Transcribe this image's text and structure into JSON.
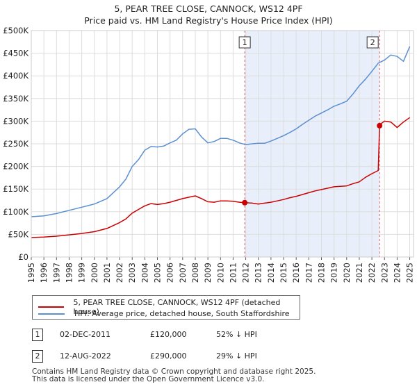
{
  "title": "5, PEAR TREE CLOSE, CANNOCK, WS12 4PF",
  "subtitle": "Price paid vs. HM Land Registry's House Price Index (HPI)",
  "chart_data": {
    "type": "line",
    "xlim": [
      1995,
      2025.3
    ],
    "ylim": [
      0,
      500000
    ],
    "y_ticks": [
      {
        "value": 0,
        "label": "£0"
      },
      {
        "value": 50000,
        "label": "£50K"
      },
      {
        "value": 100000,
        "label": "£100K"
      },
      {
        "value": 150000,
        "label": "£150K"
      },
      {
        "value": 200000,
        "label": "£200K"
      },
      {
        "value": 250000,
        "label": "£250K"
      },
      {
        "value": 300000,
        "label": "£300K"
      },
      {
        "value": 350000,
        "label": "£350K"
      },
      {
        "value": 400000,
        "label": "£400K"
      },
      {
        "value": 450000,
        "label": "£450K"
      },
      {
        "value": 500000,
        "label": "£500K"
      }
    ],
    "x_ticks": [
      "1995",
      "1996",
      "1997",
      "1998",
      "1999",
      "2000",
      "2001",
      "2002",
      "2003",
      "2004",
      "2005",
      "2006",
      "2007",
      "2008",
      "2009",
      "2010",
      "2011",
      "2012",
      "2013",
      "2014",
      "2015",
      "2016",
      "2017",
      "2018",
      "2019",
      "2020",
      "2021",
      "2022",
      "2023",
      "2024",
      "2025"
    ],
    "shaded_range": [
      2011.92,
      2022.61
    ],
    "series": [
      {
        "name": "5, PEAR TREE CLOSE, CANNOCK, WS12 4PF (detached house)",
        "color": "#cc0000",
        "x": [
          1995,
          1996,
          1997,
          1998,
          1999,
          2000,
          2001,
          2002,
          2002.5,
          2003,
          2003.5,
          2004,
          2004.5,
          2005,
          2005.5,
          2006,
          2006.5,
          2007,
          2007.5,
          2008,
          2008.5,
          2009,
          2009.5,
          2010,
          2010.5,
          2011,
          2011.5,
          2011.92,
          2012.5,
          2013,
          2013.5,
          2014,
          2014.5,
          2015,
          2015.5,
          2016,
          2016.5,
          2017,
          2017.5,
          2018,
          2018.5,
          2019,
          2019.5,
          2020,
          2020.5,
          2021,
          2021.5,
          2022,
          2022.5,
          2022.61,
          2022.7,
          2023,
          2023.5,
          2024,
          2024.5,
          2025
        ],
        "y": [
          43000,
          44000,
          46000,
          49000,
          52000,
          56000,
          63000,
          76000,
          84000,
          97000,
          105000,
          113000,
          118000,
          116000,
          118000,
          121000,
          125000,
          129000,
          132000,
          135000,
          129000,
          122000,
          121000,
          124000,
          124000,
          123000,
          121000,
          120000,
          119000,
          117000,
          119000,
          121000,
          124000,
          127000,
          131000,
          134000,
          138000,
          142000,
          146000,
          149000,
          152000,
          155000,
          156000,
          157000,
          162000,
          166000,
          176000,
          184000,
          191000,
          290000,
          294000,
          300000,
          298000,
          286000,
          298000,
          308000
        ]
      },
      {
        "name": "HPI: Average price, detached house, South Staffordshire",
        "color": "#5b8fd0",
        "x": [
          1995,
          1996,
          1997,
          1998,
          1999,
          2000,
          2001,
          2002,
          2002.5,
          2003,
          2003.5,
          2004,
          2004.5,
          2005,
          2005.5,
          2006,
          2006.5,
          2007,
          2007.5,
          2008,
          2008.5,
          2009,
          2009.5,
          2010,
          2010.5,
          2011,
          2011.5,
          2012,
          2012.5,
          2013,
          2013.5,
          2014,
          2014.5,
          2015,
          2015.5,
          2016,
          2016.5,
          2017,
          2017.5,
          2018,
          2018.5,
          2019,
          2019.5,
          2020,
          2020.5,
          2021,
          2021.5,
          2022,
          2022.5,
          2023,
          2023.5,
          2024,
          2024.5,
          2025
        ],
        "y": [
          89000,
          91000,
          96000,
          103000,
          110000,
          117000,
          129000,
          155000,
          172000,
          200000,
          215000,
          236000,
          244000,
          243000,
          245000,
          252000,
          258000,
          272000,
          282000,
          283000,
          265000,
          252000,
          255000,
          262000,
          262000,
          258000,
          252000,
          248000,
          250000,
          251000,
          251000,
          256000,
          262000,
          268000,
          275000,
          283000,
          293000,
          302000,
          311000,
          318000,
          325000,
          333000,
          338000,
          344000,
          360000,
          378000,
          393000,
          410000,
          428000,
          435000,
          446000,
          443000,
          432000,
          465000
        ]
      }
    ],
    "transactions": [
      {
        "id": "1",
        "date": "02-DEC-2011",
        "price": "£120,000",
        "hpi": "52% ↓ HPI",
        "x": 2011.92,
        "y": 120000
      },
      {
        "id": "2",
        "date": "12-AUG-2022",
        "price": "£290,000",
        "hpi": "29% ↓ HPI",
        "x": 2022.61,
        "y": 290000
      }
    ]
  },
  "legend": {
    "property_label": "5, PEAR TREE CLOSE, CANNOCK, WS12 4PF (detached house)",
    "hpi_label": "HPI: Average price, detached house, South Staffordshire"
  },
  "footer": {
    "line1": "Contains HM Land Registry data © Crown copyright and database right 2025.",
    "line2": "This data is licensed under the Open Government Licence v3.0."
  }
}
